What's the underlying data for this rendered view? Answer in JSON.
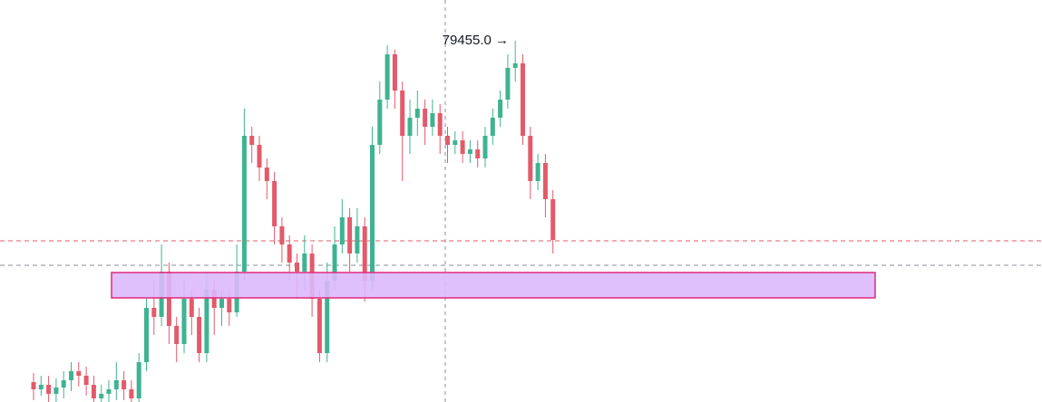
{
  "chart_data": {
    "type": "candlestick",
    "ylim": [
      73470,
      80130
    ],
    "up_color": "#3fb391",
    "down_color": "#e35a6b",
    "open": [
      73800,
      73680,
      73755,
      73605,
      73710,
      73830,
      73980,
      73905,
      73755,
      73530,
      73605,
      73680,
      73830,
      73680,
      73530,
      74130,
      75030,
      74880,
      75630,
      74730,
      74430,
      75180,
      74880,
      74280,
      75330,
      75030,
      75180,
      74955,
      75630,
      77880,
      77730,
      77355,
      77130,
      76380,
      76080,
      75780,
      75630,
      75930,
      75180,
      74280,
      75480,
      76080,
      76530,
      75930,
      76380,
      75480,
      77730,
      78480,
      79230,
      78630,
      77880,
      78180,
      78330,
      78030,
      78255,
      77880,
      77730,
      77805,
      77580,
      77655,
      77505,
      77880,
      78180,
      78480,
      79005,
      79080,
      77880,
      77130,
      77430,
      76830
    ],
    "high": [
      73950,
      73905,
      73905,
      73860,
      73980,
      74130,
      74130,
      74055,
      73905,
      73755,
      73830,
      74130,
      73980,
      73830,
      74280,
      75180,
      75480,
      76080,
      75780,
      74880,
      75480,
      75330,
      75030,
      75630,
      75480,
      75330,
      75330,
      76080,
      78330,
      78030,
      77880,
      77505,
      77280,
      76530,
      76230,
      75930,
      76230,
      76080,
      75330,
      75780,
      76380,
      76830,
      76680,
      76680,
      76530,
      78030,
      78780,
      79380,
      79305,
      78780,
      78480,
      78630,
      78480,
      78480,
      78405,
      78030,
      77955,
      77955,
      77805,
      77805,
      78030,
      78330,
      78630,
      79230,
      79455,
      79230,
      78030,
      77580,
      77580,
      76980
    ],
    "low": [
      73500,
      73575,
      73425,
      73425,
      73530,
      73650,
      73725,
      73575,
      73350,
      73350,
      73425,
      73500,
      73500,
      73350,
      73380,
      73980,
      74580,
      74730,
      74430,
      74130,
      74280,
      74580,
      74130,
      74130,
      74580,
      74730,
      74730,
      74880,
      75480,
      77430,
      77130,
      76830,
      76080,
      75780,
      75480,
      75180,
      75330,
      74880,
      74130,
      74130,
      75330,
      75930,
      75630,
      75780,
      75130,
      75330,
      77580,
      78330,
      78330,
      77130,
      77580,
      77880,
      77730,
      77880,
      77580,
      77430,
      77580,
      77430,
      77430,
      77355,
      77355,
      77730,
      78030,
      78330,
      78780,
      77730,
      76830,
      76980,
      76530,
      75930
    ],
    "close": [
      73680,
      73755,
      73605,
      73710,
      73830,
      73980,
      73905,
      73755,
      73530,
      73605,
      73680,
      73830,
      73680,
      73530,
      74130,
      75030,
      74880,
      75630,
      74730,
      74430,
      75180,
      74880,
      74280,
      75330,
      75030,
      75180,
      74955,
      75630,
      77880,
      77730,
      77355,
      77130,
      76380,
      76080,
      75780,
      75630,
      75930,
      75180,
      74280,
      75480,
      76080,
      76530,
      75930,
      76380,
      75480,
      77730,
      78480,
      79230,
      78630,
      77880,
      78180,
      78330,
      78030,
      78255,
      77880,
      77730,
      77805,
      77580,
      77655,
      77505,
      77880,
      78180,
      78480,
      79005,
      79080,
      77880,
      77130,
      77430,
      76830,
      76155
    ],
    "price_lines": [
      {
        "value": 76140,
        "color": "#e05a6c"
      },
      {
        "value": 75735,
        "color": "#8a8f9a"
      }
    ],
    "zone": {
      "low": 75195,
      "high": 75615,
      "color": "#dcb8fc",
      "border": "#e0287a"
    },
    "annotation": {
      "text": "79455.0 →",
      "value": 79455
    }
  }
}
